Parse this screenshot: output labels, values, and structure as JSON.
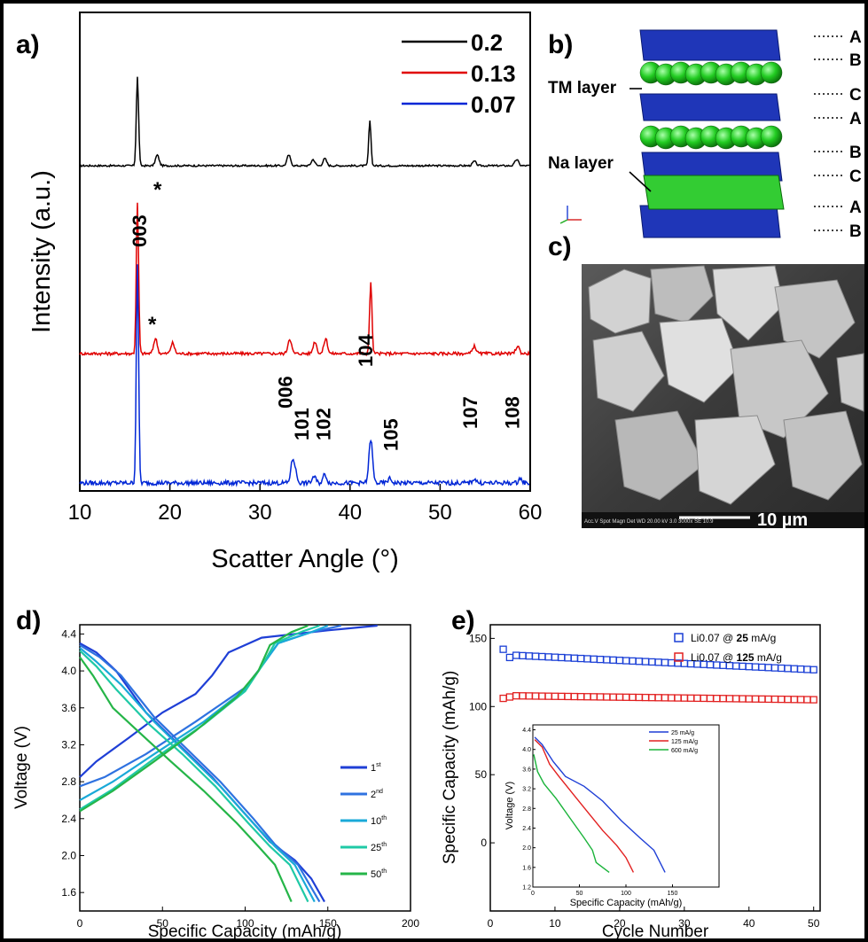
{
  "panels": {
    "a": {
      "label": "a)",
      "chart_data": {
        "type": "line",
        "xlabel": "Scatter Angle (°)",
        "ylabel": "Intensity (a.u.)",
        "xlim": [
          10,
          60
        ],
        "xticks": [
          "10",
          "20",
          "30",
          "40",
          "50",
          "60"
        ],
        "legend": [
          "0.2",
          "0.13",
          "0.07"
        ],
        "colors": [
          "#000000",
          "#e00000",
          "#0026d6"
        ],
        "series": [
          {
            "name": "0.2",
            "peaks": [
              [
                16.4,
                1.0
              ],
              [
                18.6,
                0.12
              ],
              [
                33.2,
                0.12
              ],
              [
                35.9,
                0.07
              ],
              [
                37.2,
                0.08
              ],
              [
                42.2,
                0.5
              ],
              [
                53.8,
                0.05
              ],
              [
                58.5,
                0.07
              ]
            ]
          },
          {
            "name": "0.13",
            "peaks": [
              [
                16.4,
                1.0
              ],
              [
                18.4,
                0.1
              ],
              [
                20.3,
                0.07
              ],
              [
                33.3,
                0.1
              ],
              [
                36.1,
                0.08
              ],
              [
                37.3,
                0.1
              ],
              [
                42.3,
                0.48
              ],
              [
                53.8,
                0.05
              ],
              [
                58.6,
                0.05
              ]
            ]
          },
          {
            "name": "0.07",
            "peaks": [
              [
                16.4,
                1.0
              ],
              [
                33.6,
                0.09
              ],
              [
                33.9,
                0.05
              ],
              [
                36.0,
                0.03
              ],
              [
                37.2,
                0.04
              ],
              [
                42.3,
                0.2
              ],
              [
                44.4,
                0.02
              ],
              [
                53.8,
                0.02
              ],
              [
                58.9,
                0.02
              ]
            ]
          }
        ],
        "peak_labels": [
          "003",
          "006",
          "101",
          "102",
          "104",
          "105",
          "107",
          "108"
        ],
        "marker": "*"
      }
    },
    "b": {
      "label": "b)",
      "tm_label": "TM layer",
      "na_label": "Na layer",
      "stacking": [
        "A",
        "B",
        "C",
        "A",
        "B",
        "C",
        "A",
        "B"
      ]
    },
    "c": {
      "label": "c)",
      "scale_bar": "10 µm",
      "info_text": "Acc.V  Spot Magn  Det WD   20.00 kV 3.0  3000x  SE 10.9"
    },
    "d": {
      "label": "d)",
      "chart_data": {
        "type": "line",
        "xlabel": "Specific Capacity (mAh/g)",
        "ylabel": "Voltage (V)",
        "xlim": [
          0,
          200
        ],
        "ylim": [
          1.4,
          4.5
        ],
        "xticks": [
          "0",
          "50",
          "100",
          "150",
          "200"
        ],
        "yticks": [
          "1.6",
          "2.0",
          "2.4",
          "2.8",
          "3.2",
          "3.6",
          "4.0",
          "4.4"
        ],
        "series": [
          {
            "name": "1st",
            "label_main": "1",
            "label_sup": "st",
            "color": "#1f3fd6",
            "charge": [
              [
                0,
                2.85
              ],
              [
                10,
                3.02
              ],
              [
                30,
                3.28
              ],
              [
                50,
                3.55
              ],
              [
                70,
                3.75
              ],
              [
                80,
                3.95
              ],
              [
                90,
                4.2
              ],
              [
                110,
                4.36
              ],
              [
                150,
                4.44
              ],
              [
                180,
                4.49
              ]
            ],
            "discharge": [
              [
                0,
                4.3
              ],
              [
                10,
                4.2
              ],
              [
                22,
                4.0
              ],
              [
                40,
                3.55
              ],
              [
                60,
                3.2
              ],
              [
                80,
                2.85
              ],
              [
                100,
                2.45
              ],
              [
                115,
                2.15
              ],
              [
                130,
                1.95
              ],
              [
                140,
                1.75
              ],
              [
                148,
                1.5
              ]
            ]
          },
          {
            "name": "2nd",
            "label_main": "2",
            "label_sup": "nd",
            "color": "#2f72e0",
            "charge": [
              [
                0,
                2.75
              ],
              [
                15,
                2.85
              ],
              [
                40,
                3.1
              ],
              [
                70,
                3.45
              ],
              [
                100,
                3.82
              ],
              [
                110,
                4.05
              ],
              [
                120,
                4.3
              ],
              [
                140,
                4.42
              ],
              [
                158,
                4.49
              ]
            ],
            "discharge": [
              [
                0,
                4.28
              ],
              [
                12,
                4.15
              ],
              [
                25,
                3.95
              ],
              [
                45,
                3.5
              ],
              [
                65,
                3.15
              ],
              [
                85,
                2.8
              ],
              [
                105,
                2.4
              ],
              [
                118,
                2.12
              ],
              [
                132,
                1.9
              ],
              [
                145,
                1.5
              ]
            ]
          },
          {
            "name": "10th",
            "label_main": "10",
            "label_sup": "th",
            "color": "#1aa9d8",
            "charge": [
              [
                0,
                2.6
              ],
              [
                20,
                2.8
              ],
              [
                45,
                3.1
              ],
              [
                75,
                3.45
              ],
              [
                100,
                3.8
              ],
              [
                110,
                4.05
              ],
              [
                120,
                4.3
              ],
              [
                140,
                4.42
              ],
              [
                150,
                4.49
              ]
            ],
            "discharge": [
              [
                0,
                4.25
              ],
              [
                10,
                4.1
              ],
              [
                25,
                3.85
              ],
              [
                45,
                3.45
              ],
              [
                65,
                3.1
              ],
              [
                85,
                2.75
              ],
              [
                105,
                2.35
              ],
              [
                118,
                2.1
              ],
              [
                130,
                1.9
              ],
              [
                142,
                1.5
              ]
            ]
          },
          {
            "name": "25th",
            "label_main": "25",
            "label_sup": "th",
            "color": "#1fc9a6",
            "charge": [
              [
                0,
                2.5
              ],
              [
                20,
                2.72
              ],
              [
                45,
                3.05
              ],
              [
                75,
                3.42
              ],
              [
                100,
                3.78
              ],
              [
                110,
                4.05
              ],
              [
                118,
                4.3
              ],
              [
                135,
                4.43
              ],
              [
                145,
                4.49
              ]
            ],
            "discharge": [
              [
                0,
                4.22
              ],
              [
                10,
                4.05
              ],
              [
                22,
                3.8
              ],
              [
                42,
                3.42
              ],
              [
                62,
                3.1
              ],
              [
                82,
                2.75
              ],
              [
                102,
                2.35
              ],
              [
                115,
                2.1
              ],
              [
                127,
                1.9
              ],
              [
                138,
                1.5
              ]
            ]
          },
          {
            "name": "50th",
            "label_main": "50",
            "label_sup": "th",
            "color": "#25b548",
            "charge": [
              [
                0,
                2.48
              ],
              [
                20,
                2.7
              ],
              [
                45,
                3.02
              ],
              [
                70,
                3.35
              ],
              [
                95,
                3.72
              ],
              [
                108,
                4.0
              ],
              [
                115,
                4.28
              ],
              [
                128,
                4.42
              ],
              [
                138,
                4.49
              ]
            ],
            "discharge": [
              [
                0,
                4.15
              ],
              [
                8,
                3.95
              ],
              [
                20,
                3.6
              ],
              [
                35,
                3.35
              ],
              [
                55,
                3.02
              ],
              [
                75,
                2.7
              ],
              [
                95,
                2.35
              ],
              [
                108,
                2.1
              ],
              [
                118,
                1.9
              ],
              [
                128,
                1.5
              ]
            ]
          }
        ]
      }
    },
    "e": {
      "label": "e)",
      "chart_data": {
        "type": "scatter",
        "xlabel": "Cycle Number",
        "ylabel": "Specific Capacity (mAh/g)",
        "xlim": [
          0,
          51
        ],
        "ylim": [
          -50,
          160
        ],
        "xticks": [
          "0",
          "10",
          "20",
          "30",
          "40",
          "50"
        ],
        "yticks": [
          "0",
          "50",
          "100",
          "150"
        ],
        "series": [
          {
            "name": "Li0.07 @ 25 mA/g",
            "legend_prefix": "Li0.07 @ ",
            "legend_bold": "25",
            "legend_unit": " mA/g",
            "color": "#1a3fd6",
            "start": 2,
            "end": 50,
            "first_value": 142,
            "second_value": 136,
            "start_value": 138,
            "end_value": 127
          },
          {
            "name": "Li0.07 @ 125 mA/g",
            "legend_prefix": "Li0.07 @ ",
            "legend_bold": "125",
            "legend_unit": " mA/g",
            "color": "#e22020",
            "start": 2,
            "end": 50,
            "first_value": 106,
            "second_value": 107,
            "start_value": 108,
            "end_value": 105
          }
        ],
        "inset": {
          "type": "line",
          "xlabel": "Specific Capacity (mAh/g)",
          "ylabel": "Voltage (V)",
          "xlim": [
            0,
            200
          ],
          "ylim": [
            1.2,
            4.5
          ],
          "xticks": [
            "0",
            "50",
            "100",
            "150"
          ],
          "yticks": [
            "1.2",
            "1.6",
            "2.0",
            "2.4",
            "2.8",
            "3.2",
            "3.6",
            "4.0",
            "4.4"
          ],
          "series": [
            {
              "name": "25 mA/g",
              "color": "#1f3fd6",
              "points": [
                [
                  2,
                  4.25
                ],
                [
                  10,
                  4.1
                ],
                [
                  22,
                  3.75
                ],
                [
                  35,
                  3.45
                ],
                [
                  55,
                  3.25
                ],
                [
                  75,
                  2.95
                ],
                [
                  95,
                  2.55
                ],
                [
                  115,
                  2.2
                ],
                [
                  130,
                  1.95
                ],
                [
                  142,
                  1.5
                ]
              ]
            },
            {
              "name": "125 mA/g",
              "color": "#e22020",
              "points": [
                [
                  2,
                  4.2
                ],
                [
                  10,
                  4.05
                ],
                [
                  18,
                  3.7
                ],
                [
                  28,
                  3.45
                ],
                [
                  45,
                  3.05
                ],
                [
                  60,
                  2.7
                ],
                [
                  75,
                  2.35
                ],
                [
                  90,
                  2.05
                ],
                [
                  100,
                  1.8
                ],
                [
                  108,
                  1.5
                ]
              ]
            },
            {
              "name": "600 mA/g",
              "color": "#1ab33a",
              "points": [
                [
                  1,
                  3.9
                ],
                [
                  5,
                  3.55
                ],
                [
                  12,
                  3.3
                ],
                [
                  25,
                  3.0
                ],
                [
                  40,
                  2.6
                ],
                [
                  55,
                  2.2
                ],
                [
                  64,
                  1.95
                ],
                [
                  68,
                  1.7
                ],
                [
                  82,
                  1.5
                ]
              ]
            }
          ]
        }
      }
    }
  }
}
